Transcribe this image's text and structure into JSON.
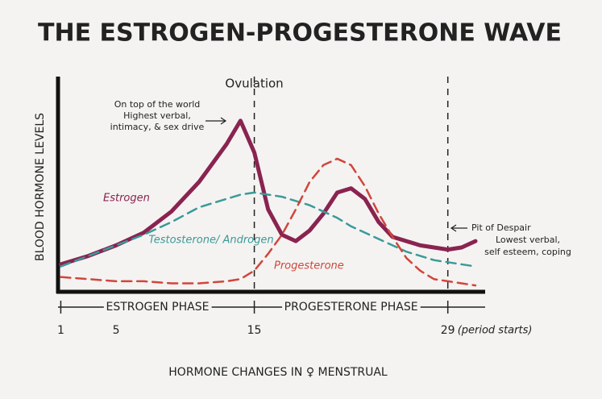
{
  "chart_data": {
    "type": "line",
    "title": "THE ESTROGEN-PROGESTERONE WAVE",
    "y_label": "BLOOD HORMONE LEVELS",
    "x_label": "HORMONE CHANGES IN ♀ MENSTRUAL",
    "x": [
      1,
      3,
      5,
      7,
      9,
      11,
      13,
      14,
      15,
      16,
      17,
      18,
      19,
      20,
      21,
      22,
      23,
      24,
      25,
      26,
      27,
      28,
      29,
      30,
      31
    ],
    "series": [
      {
        "name": "Estrogen",
        "color": "#8a2350",
        "dash": false,
        "values": [
          13,
          17,
          22,
          28,
          38,
          52,
          70,
          81,
          66,
          39,
          27,
          24,
          29,
          37,
          47,
          49,
          44,
          33,
          26,
          24,
          22,
          21,
          20,
          21,
          24
        ]
      },
      {
        "name": "Testosterone/ Androgen",
        "color": "#3a9a9a",
        "dash": true,
        "values": [
          12,
          17,
          22,
          27,
          33,
          40,
          44,
          46,
          47,
          46,
          45,
          43,
          41,
          38,
          35,
          31,
          28,
          25,
          22,
          19,
          17,
          15,
          14,
          13,
          12
        ]
      },
      {
        "name": "Progesterone",
        "color": "#d0463c",
        "dash": true,
        "values": [
          7,
          6,
          5,
          5,
          4,
          4,
          5,
          6,
          10,
          18,
          27,
          39,
          52,
          60,
          63,
          60,
          50,
          37,
          26,
          16,
          10,
          6,
          5,
          4,
          3
        ]
      }
    ],
    "xlim": [
      0.8,
      31.7
    ],
    "ylim": [
      0,
      100
    ],
    "xticks": [
      1,
      5,
      15,
      29
    ],
    "vlines": [
      15,
      29
    ],
    "vline_label": "Ovulation",
    "peak_note": [
      "On top of the world",
      "Highest verbal,",
      "intimacy, & sex drive"
    ],
    "pit_note": [
      "Pit of Despair",
      "Lowest verbal,",
      "self esteem, coping"
    ],
    "phases": [
      "ESTROGEN PHASE",
      "PROGESTERONE PHASE"
    ],
    "end_note": "(period starts)"
  }
}
